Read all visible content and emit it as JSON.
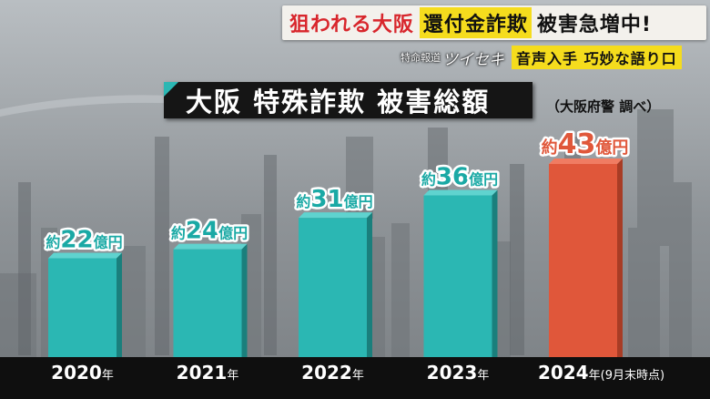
{
  "headline": {
    "part1": "狙われる大阪",
    "part2": "還付金詐欺",
    "part3": "被害急増中!"
  },
  "subline": {
    "program_small": "特命報道",
    "program_name": "ツイセキ",
    "subtitle": "音声入手 巧妙な語り口"
  },
  "colors": {
    "normal_bar": "#2bb7b3",
    "highlight_bar": "#e0573a",
    "label_normal": "#1aa9a5",
    "label_highlight": "#e0573a"
  },
  "chart_data": {
    "type": "bar",
    "title": "大阪 特殊詐欺 被害総額",
    "source": "（大阪府警 調べ）",
    "categories": [
      "2020年",
      "2021年",
      "2022年",
      "2023年",
      "2024年"
    ],
    "category_notes": [
      "",
      "",
      "",
      "",
      "(9月末時点)"
    ],
    "values": [
      22,
      24,
      31,
      36,
      43
    ],
    "value_labels": [
      "約22億円",
      "約24億円",
      "約31億円",
      "約36億円",
      "約43億円"
    ],
    "unit": "億円",
    "highlight_index": 4
  }
}
